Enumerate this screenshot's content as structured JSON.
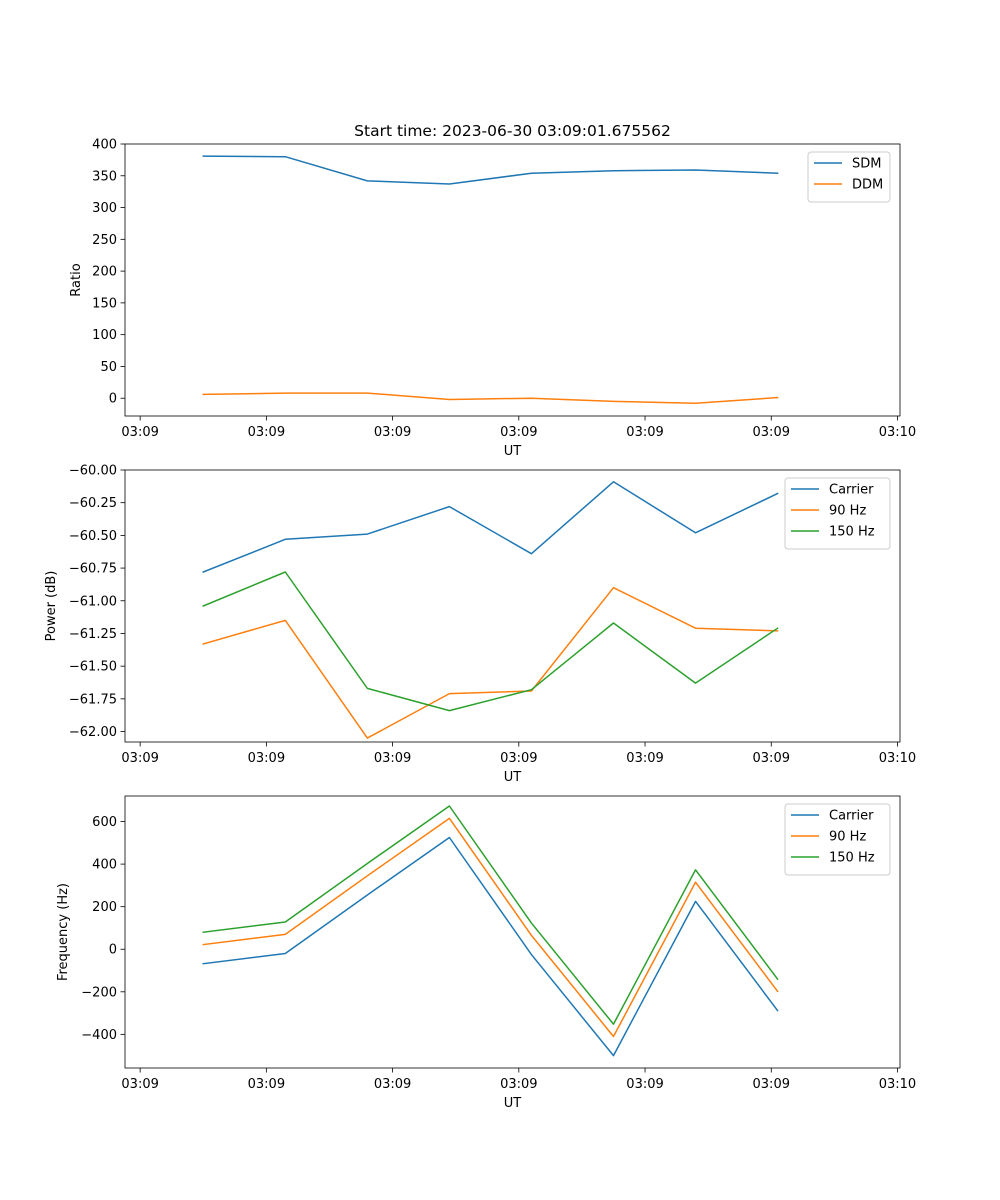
{
  "chart_data": [
    {
      "type": "line",
      "title": "Start time: 2023-06-30 03:09:01.675562",
      "xlabel": "UT",
      "ylabel": "Ratio",
      "x": [
        0.5,
        1.15,
        1.8,
        2.45,
        3.1,
        3.75,
        4.4,
        5.05
      ],
      "xlim": [
        -0.12,
        6.02
      ],
      "xticks": [
        0,
        1,
        2,
        3,
        4,
        5,
        6
      ],
      "xtick_labels": [
        "03:09",
        "03:09",
        "03:09",
        "03:09",
        "03:09",
        "03:09",
        "03:10"
      ],
      "ylim": [
        -28,
        400
      ],
      "yticks": [
        0,
        50,
        100,
        150,
        200,
        250,
        300,
        350,
        400
      ],
      "ytick_labels": [
        "0",
        "50",
        "100",
        "150",
        "200",
        "250",
        "300",
        "350",
        "400"
      ],
      "legend": "top-right",
      "series": [
        {
          "name": "SDM",
          "color": "#1f77b4",
          "values": [
            381,
            380,
            342,
            337,
            354,
            358,
            359,
            354
          ]
        },
        {
          "name": "DDM",
          "color": "#ff7f0e",
          "values": [
            6,
            8,
            8,
            -2,
            0,
            -5,
            -8,
            1
          ]
        }
      ]
    },
    {
      "type": "line",
      "xlabel": "UT",
      "ylabel": "Power (dB)",
      "x": [
        0.5,
        1.15,
        1.8,
        2.45,
        3.1,
        3.75,
        4.4,
        5.05
      ],
      "xlim": [
        -0.12,
        6.02
      ],
      "xticks": [
        0,
        1,
        2,
        3,
        4,
        5,
        6
      ],
      "xtick_labels": [
        "03:09",
        "03:09",
        "03:09",
        "03:09",
        "03:09",
        "03:09",
        "03:10"
      ],
      "ylim": [
        -62.08,
        -60.0
      ],
      "yticks": [
        -60.0,
        -60.25,
        -60.5,
        -60.75,
        -61.0,
        -61.25,
        -61.5,
        -61.75,
        -62.0
      ],
      "ytick_labels": [
        "−60.00",
        "−60.25",
        "−60.50",
        "−60.75",
        "−61.00",
        "−61.25",
        "−61.50",
        "−61.75",
        "−62.00"
      ],
      "legend": "top-right",
      "series": [
        {
          "name": "Carrier",
          "color": "#1f77b4",
          "values": [
            -60.78,
            -60.53,
            -60.49,
            -60.28,
            -60.64,
            -60.09,
            -60.48,
            -60.18
          ]
        },
        {
          "name": "90 Hz",
          "color": "#ff7f0e",
          "values": [
            -61.33,
            -61.15,
            -62.05,
            -61.71,
            -61.69,
            -60.9,
            -61.21,
            -61.23
          ]
        },
        {
          "name": "150 Hz",
          "color": "#2ca02c",
          "values": [
            -61.04,
            -60.78,
            -61.67,
            -61.84,
            -61.68,
            -61.17,
            -61.63,
            -61.21
          ]
        }
      ]
    },
    {
      "type": "line",
      "xlabel": "UT",
      "ylabel": "Frequency (Hz)",
      "x": [
        0.5,
        1.15,
        1.8,
        2.45,
        3.1,
        3.75,
        4.4,
        5.05
      ],
      "xlim": [
        -0.12,
        6.02
      ],
      "xticks": [
        0,
        1,
        2,
        3,
        4,
        5,
        6
      ],
      "xtick_labels": [
        "03:09",
        "03:09",
        "03:09",
        "03:09",
        "03:09",
        "03:09",
        "03:10"
      ],
      "ylim": [
        -558,
        720
      ],
      "yticks": [
        -400,
        -200,
        0,
        200,
        400,
        600
      ],
      "ytick_labels": [
        "−400",
        "−200",
        "0",
        "200",
        "400",
        "600"
      ],
      "legend": "top-right",
      "series": [
        {
          "name": "Carrier",
          "color": "#1f77b4",
          "values": [
            -68,
            -20,
            255,
            525,
            -25,
            -500,
            225,
            -288
          ]
        },
        {
          "name": "90 Hz",
          "color": "#ff7f0e",
          "values": [
            22,
            70,
            345,
            615,
            65,
            -410,
            315,
            -198
          ]
        },
        {
          "name": "150 Hz",
          "color": "#2ca02c",
          "values": [
            80,
            128,
            403,
            673,
            123,
            -352,
            373,
            -140
          ]
        }
      ]
    }
  ]
}
